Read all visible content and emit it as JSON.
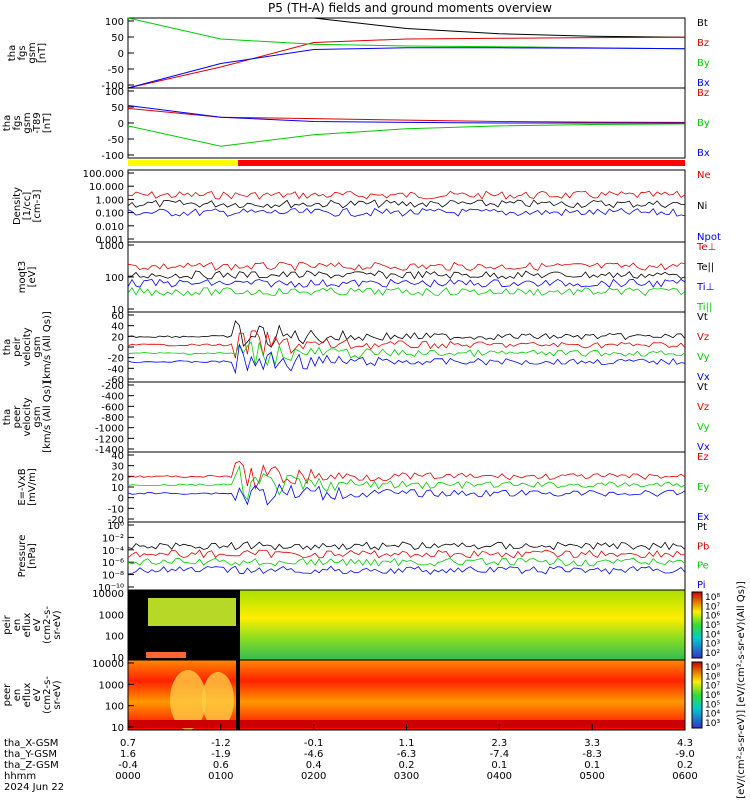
{
  "title": "P5 (TH-A) fields and ground moments overview",
  "colors": {
    "black": "#000000",
    "red": "#e00000",
    "green": "#00cc00",
    "blue": "#0000ff",
    "yellow": "#ffff00",
    "bar_red": "#ff0000"
  },
  "chart_data": [
    {
      "type": "line",
      "panel": "fgs_gsm",
      "ylabel": [
        "tha",
        "fgs",
        "gsm",
        "[nT]"
      ],
      "ylim": [
        -100,
        100
      ],
      "yticks": [
        "100",
        "50",
        "0",
        "-50",
        "-100"
      ],
      "legend": [
        "Bt",
        "Bz",
        "By",
        "Bx"
      ],
      "x": [
        "0000",
        "0100",
        "0200",
        "0300",
        "0400",
        "0500",
        "0600"
      ],
      "series": [
        {
          "name": "Bt",
          "values": [
            130,
            120,
            100,
            70,
            55,
            48,
            45
          ]
        },
        {
          "name": "Bz",
          "values": [
            -100,
            -40,
            30,
            40,
            42,
            44,
            45
          ]
        },
        {
          "name": "By",
          "values": [
            100,
            40,
            25,
            20,
            18,
            15,
            12
          ]
        },
        {
          "name": "Bx",
          "values": [
            -100,
            -30,
            10,
            15,
            15,
            14,
            12
          ]
        }
      ]
    },
    {
      "type": "line",
      "panel": "fgs_gsm_minus_t89",
      "ylabel": [
        "tha",
        "fgs",
        "gsm",
        "-T89",
        "[nT]"
      ],
      "ylim": [
        -120,
        120
      ],
      "yticks": [
        "100",
        "50",
        "0",
        "-50",
        "-100"
      ],
      "legend": [
        "Bz",
        "By",
        "Bx"
      ],
      "x": [
        "0000",
        "0100",
        "0200",
        "0300",
        "0400",
        "0500",
        "0600"
      ],
      "series": [
        {
          "name": "Bz",
          "values": [
            50,
            20,
            15,
            10,
            5,
            3,
            2
          ]
        },
        {
          "name": "By",
          "values": [
            -10,
            -80,
            -40,
            -20,
            -10,
            -5,
            -3
          ]
        },
        {
          "name": "Bx",
          "values": [
            60,
            20,
            5,
            2,
            0,
            0,
            0
          ]
        }
      ]
    },
    {
      "type": "line",
      "panel": "density",
      "ylabel": [
        "Density",
        "[1/cc]",
        "[cm-3]"
      ],
      "ylim": [
        0.001,
        100
      ],
      "yscale": "log",
      "yticks": [
        "100.000",
        "10.000",
        "1.000",
        "0.100",
        "0.010",
        "0.001"
      ],
      "legend": [
        "Ne",
        "Ni",
        "Npot"
      ]
    },
    {
      "type": "line",
      "panel": "temperature",
      "ylabel": [
        "moqt3",
        "[eV]"
      ],
      "ylim": [
        10,
        10000
      ],
      "yscale": "log",
      "yticks": [
        "1000",
        "100",
        "10"
      ],
      "legend": [
        "Te⊥",
        "Te||",
        "Ti⊥",
        "Ti||"
      ]
    },
    {
      "type": "line",
      "panel": "peir_velocity",
      "ylabel": [
        "tha",
        "peir",
        "velocity",
        "gsm",
        "[km/s (All Qs)]"
      ],
      "ylim": [
        -60,
        70
      ],
      "yticks": [
        "60",
        "40",
        "20",
        "0",
        "-20",
        "-40",
        "-60"
      ],
      "legend": [
        "Vt",
        "Vz",
        "Vy",
        "Vx"
      ]
    },
    {
      "type": "line",
      "panel": "peer_velocity",
      "ylabel": [
        "tha",
        "peer",
        "velocity",
        "gsm",
        "[km/s (All Qs)]"
      ],
      "ylim": [
        -1400,
        -200
      ],
      "yticks": [
        "-200",
        "-400",
        "-600",
        "-800",
        "-1000",
        "-1200",
        "-1400"
      ],
      "legend": [
        "Vt",
        "Vz",
        "Vy",
        "Vx"
      ]
    },
    {
      "type": "line",
      "panel": "efield",
      "ylabel": [
        "E=-VxB",
        "[mV/m]"
      ],
      "ylim": [
        -20,
        40
      ],
      "yticks": [
        "40",
        "30",
        "20",
        "10",
        "0",
        "-10",
        "-20"
      ],
      "legend": [
        "Ez",
        "Ey",
        "Ex"
      ]
    },
    {
      "type": "line",
      "panel": "pressure",
      "ylabel": [
        "Pressure",
        "[nPa]"
      ],
      "ylim": [
        1e-10,
        1
      ],
      "yscale": "log",
      "yticks": [
        "10⁰",
        "10⁻²",
        "10⁻⁴",
        "10⁻⁶",
        "10⁻⁸",
        "10⁻¹⁰"
      ],
      "legend": [
        "Pt",
        "Pb",
        "Pe",
        "Pi"
      ]
    },
    {
      "type": "heatmap",
      "panel": "peir_eflux",
      "ylabel": [
        "tha",
        "peir",
        "en",
        "eflux",
        "eV",
        "(cm2-s-",
        "sr-eV)"
      ],
      "yticks": [
        "10000",
        "1000",
        "100",
        "10"
      ],
      "colorbar": [
        "10⁸",
        "10⁷",
        "10⁶",
        "10⁵",
        "10⁴",
        "10³",
        "10²"
      ]
    },
    {
      "type": "heatmap",
      "panel": "peer_eflux",
      "ylabel": [
        "tha",
        "peer",
        "en",
        "eflux",
        "eV",
        "(cm2-s-",
        "sr-eV)"
      ],
      "yticks": [
        "10000",
        "1000",
        "100",
        "10"
      ],
      "colorbar": [
        "10⁹",
        "10⁸",
        "10⁷",
        "10⁶",
        "10⁵",
        "10⁴",
        "10³"
      ]
    }
  ],
  "colorbar_label": "[eV/(cm²-s-sr-eV)] [eV/(cm²-s-sr-eV)(All Qs)]",
  "xaxis": {
    "rows": [
      {
        "label": "tha_X-GSM",
        "values": [
          "0.7",
          "-1.2",
          "-0.1",
          "1.1",
          "2.3",
          "3.3",
          "4.3"
        ]
      },
      {
        "label": "tha_Y-GSM",
        "values": [
          "1.6",
          "-1.9",
          "-4.6",
          "-6.3",
          "-7.4",
          "-8.3",
          "-9.0"
        ]
      },
      {
        "label": "tha_Z-GSM",
        "values": [
          "-0.4",
          "0.6",
          "0.4",
          "0.2",
          "0.1",
          "0.1",
          "0.2"
        ]
      },
      {
        "label": "hhmm",
        "values": [
          "0000",
          "0100",
          "0200",
          "0300",
          "0400",
          "0500",
          "0600"
        ]
      }
    ],
    "date": "2024 Jun 22"
  }
}
